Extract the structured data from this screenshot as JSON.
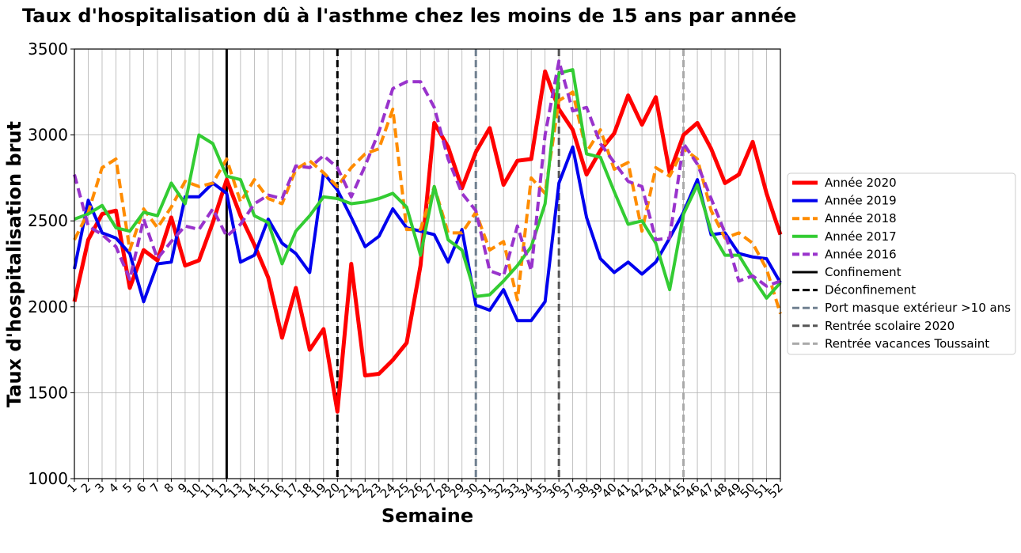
{
  "chart_data": {
    "type": "line",
    "title": "Taux d'hospitalisation dû à l'asthme chez les moins de 15 ans par année",
    "xlabel": "Semaine",
    "ylabel": "Taux d'hospitalisation brut",
    "xlim": [
      1,
      52
    ],
    "ylim": [
      1000,
      3500
    ],
    "yticks": [
      1000,
      1500,
      2000,
      2500,
      3000,
      3500
    ],
    "x": [
      1,
      2,
      3,
      4,
      5,
      6,
      7,
      8,
      9,
      10,
      11,
      12,
      13,
      14,
      15,
      16,
      17,
      18,
      19,
      20,
      21,
      22,
      23,
      24,
      25,
      26,
      27,
      28,
      29,
      30,
      31,
      32,
      33,
      34,
      35,
      36,
      37,
      38,
      39,
      40,
      41,
      42,
      43,
      44,
      45,
      46,
      47,
      48,
      49,
      50,
      51,
      52
    ],
    "grid": true,
    "legend_position": "right, outside plot",
    "series": [
      {
        "name": "Année 2020",
        "color": "#ff0000",
        "style": "solid",
        "width": 5,
        "values": [
          2030,
          2390,
          2540,
          2560,
          2110,
          2330,
          2270,
          2520,
          2240,
          2270,
          2490,
          2740,
          2530,
          2360,
          2170,
          1820,
          2110,
          1750,
          1870,
          1390,
          2250,
          1600,
          1610,
          1690,
          1790,
          2240,
          3070,
          2930,
          2690,
          2900,
          3040,
          2710,
          2850,
          2860,
          3370,
          3150,
          3030,
          2770,
          2910,
          3010,
          3230,
          3060,
          3220,
          2780,
          3000,
          3070,
          2920,
          2720,
          2770,
          2960,
          2660,
          2420
        ]
      },
      {
        "name": "Année 2019",
        "color": "#0000ee",
        "style": "solid",
        "width": 4,
        "values": [
          2220,
          2620,
          2430,
          2400,
          2310,
          2030,
          2250,
          2260,
          2640,
          2640,
          2720,
          2660,
          2260,
          2300,
          2510,
          2370,
          2310,
          2200,
          2780,
          2680,
          2520,
          2350,
          2410,
          2570,
          2460,
          2440,
          2420,
          2260,
          2450,
          2010,
          1980,
          2100,
          1920,
          1920,
          2030,
          2720,
          2930,
          2520,
          2280,
          2200,
          2260,
          2190,
          2260,
          2400,
          2550,
          2740,
          2420,
          2430,
          2310,
          2290,
          2280,
          2140
        ]
      },
      {
        "name": "Année 2018",
        "color": "#ff8c00",
        "style": "dashed",
        "width": 4,
        "values": [
          2390,
          2550,
          2810,
          2860,
          2330,
          2570,
          2460,
          2580,
          2730,
          2700,
          2720,
          2860,
          2610,
          2740,
          2630,
          2600,
          2800,
          2850,
          2780,
          2700,
          2810,
          2890,
          2920,
          3150,
          2450,
          2450,
          2700,
          2430,
          2430,
          2550,
          2330,
          2380,
          2040,
          2750,
          2660,
          3200,
          3250,
          2900,
          3030,
          2800,
          2840,
          2440,
          2810,
          2760,
          2920,
          2860,
          2560,
          2400,
          2430,
          2370,
          2220,
          1960
        ]
      },
      {
        "name": "Année 2017",
        "color": "#33cc33",
        "style": "solid",
        "width": 4,
        "values": [
          2510,
          2540,
          2590,
          2460,
          2440,
          2550,
          2530,
          2720,
          2600,
          3000,
          2950,
          2760,
          2740,
          2530,
          2490,
          2250,
          2440,
          2530,
          2640,
          2630,
          2600,
          2610,
          2630,
          2660,
          2580,
          2300,
          2700,
          2390,
          2330,
          2060,
          2070,
          2150,
          2240,
          2350,
          2600,
          3360,
          3380,
          2890,
          2870,
          2670,
          2480,
          2500,
          2370,
          2100,
          2540,
          2710,
          2440,
          2300,
          2300,
          2170,
          2050,
          2140
        ]
      },
      {
        "name": "Année 2016",
        "color": "#9933cc",
        "style": "dashed",
        "width": 4,
        "values": [
          2770,
          2470,
          2420,
          2350,
          2160,
          2510,
          2280,
          2380,
          2470,
          2450,
          2570,
          2410,
          2480,
          2600,
          2650,
          2630,
          2820,
          2810,
          2880,
          2810,
          2640,
          2820,
          3020,
          3270,
          3310,
          3310,
          3160,
          2860,
          2660,
          2560,
          2210,
          2180,
          2470,
          2210,
          3000,
          3430,
          3140,
          3160,
          2950,
          2840,
          2730,
          2700,
          2390,
          2400,
          2950,
          2830,
          2630,
          2430,
          2150,
          2180,
          2120,
          2150
        ]
      }
    ],
    "vlines": [
      {
        "name": "Confinement",
        "x": 12,
        "color": "#000000",
        "style": "solid",
        "width": 3
      },
      {
        "name": "Déconfinement",
        "x": 20,
        "color": "#000000",
        "style": "dashed",
        "width": 3
      },
      {
        "name": "Port masque extérieur >10 ans",
        "x": 30,
        "color": "#708090",
        "style": "dashed",
        "width": 3
      },
      {
        "name": "Rentrée scolaire 2020",
        "x": 36,
        "color": "#555555",
        "style": "dashed",
        "width": 3
      },
      {
        "name": "Rentrée vacances Toussaint",
        "x": 45,
        "color": "#a9a9a9",
        "style": "dashed",
        "width": 3
      }
    ]
  }
}
